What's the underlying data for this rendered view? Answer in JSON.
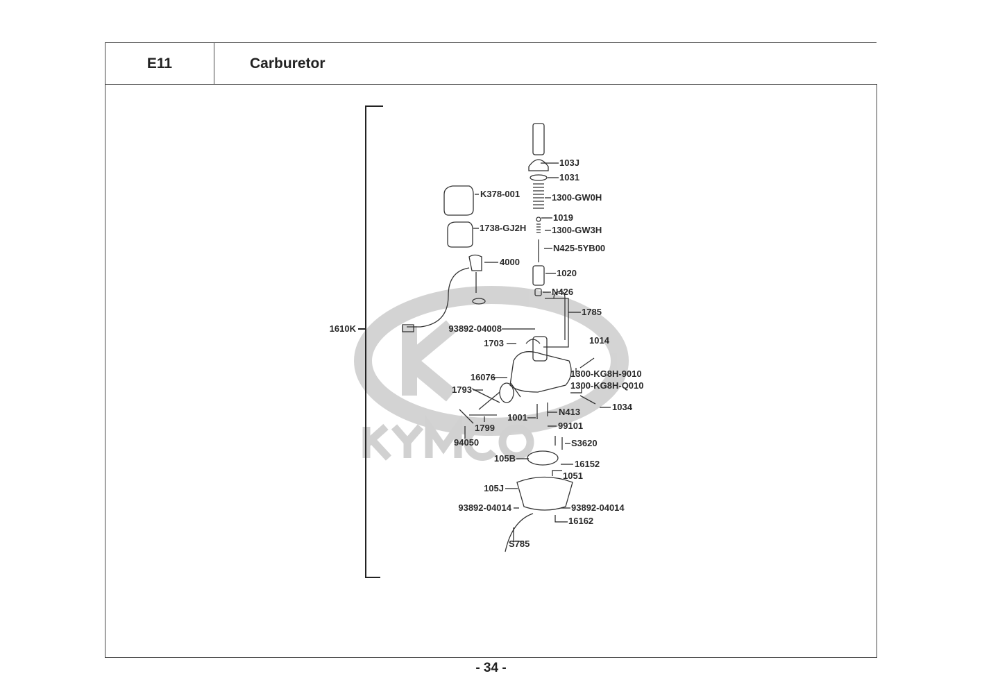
{
  "header": {
    "section_code": "E11",
    "title": "Carburetor"
  },
  "watermark": {
    "brand": "KYMCO",
    "color": "#c8c8c8"
  },
  "assembly_label": "1610K",
  "callouts": {
    "c103J": "103J",
    "c1031": "1031",
    "c1300GW0H": "1300-GW0H",
    "c1019": "1019",
    "c1300GW3H": "1300-GW3H",
    "cN4255YB00": "N425-5YB00",
    "c1020": "1020",
    "cN426": "N426",
    "c1785": "1785",
    "c1014": "1014",
    "c1300KG8H9010": "1300-KG8H-9010",
    "c1300KG8HQ010": "1300-KG8H-Q010",
    "c1034": "1034",
    "cN413": "N413",
    "c99101": "99101",
    "cS3620": "S3620",
    "c16152": "16152",
    "c1051": "1051",
    "c93892_04014_r": "93892-04014",
    "c16162": "16162",
    "cS785": "S785",
    "c93892_04014_l": "93892-04014",
    "c105J": "105J",
    "c105B": "105B",
    "c94050": "94050",
    "c1799": "1799",
    "c1001": "1001",
    "c1793": "1793",
    "c16076": "16076",
    "c1703": "1703",
    "c93892_04008": "93892-04008",
    "c4000": "4000",
    "c1738GJ2H": "1738-GJ2H",
    "cK378001": "K378-001"
  },
  "footer": {
    "page_number": "- 34 -"
  }
}
